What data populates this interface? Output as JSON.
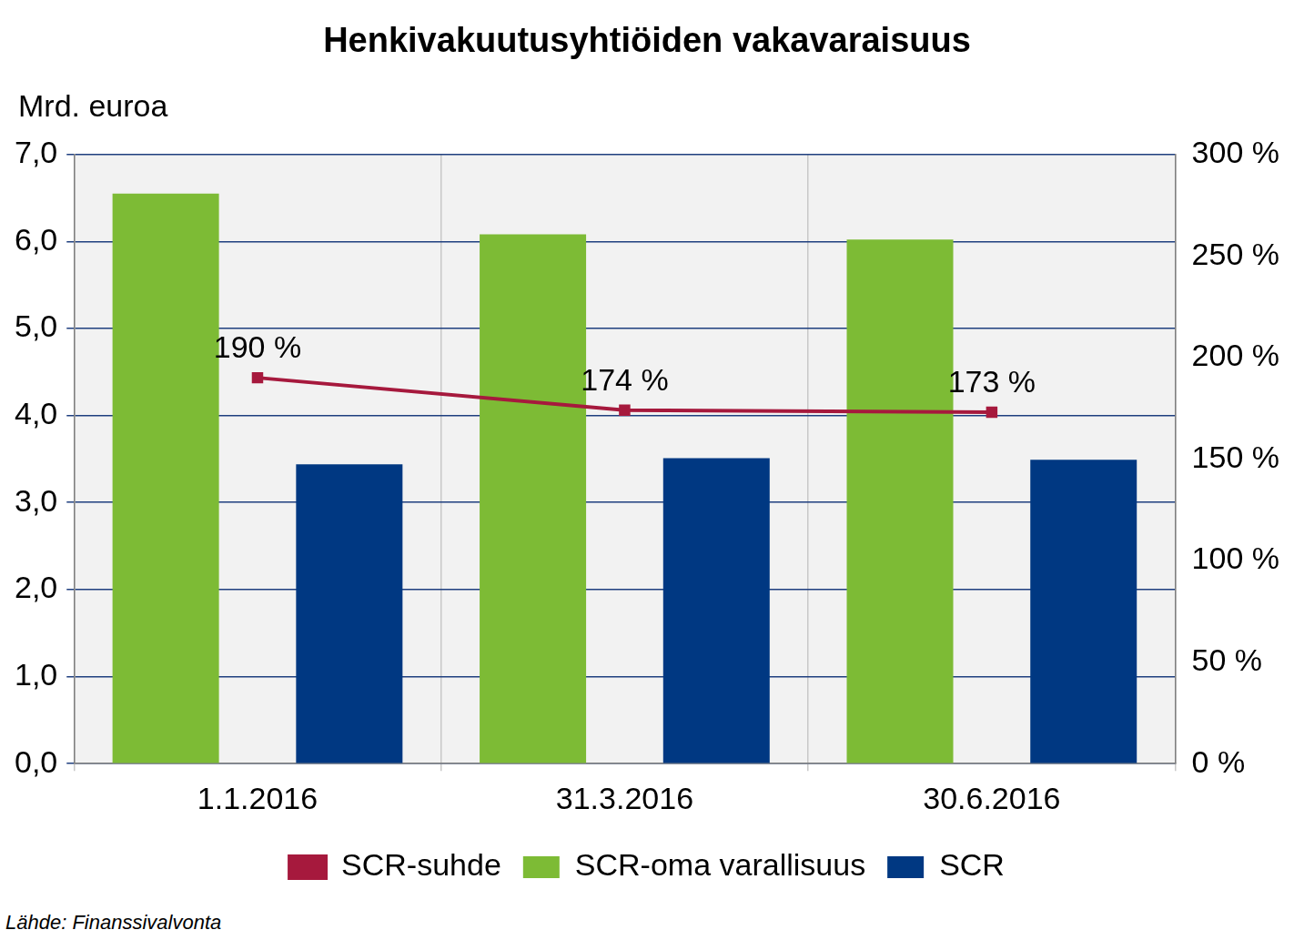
{
  "chart_data": {
    "type": "bar",
    "title": "Henkivakuutusyhtiöiden vakavaraisuus",
    "ylabel": "Mrd. euroa",
    "note": "Lähde: Finanssivalvonta",
    "categories": [
      "1.1.2016",
      "31.3.2016",
      "30.6.2016"
    ],
    "series": [
      {
        "name": "SCR-oma varallisuus",
        "type": "bar",
        "color": "#7dbb35",
        "values": [
          6.55,
          6.08,
          6.02
        ]
      },
      {
        "name": "SCR",
        "type": "bar",
        "color": "#003882",
        "values": [
          3.44,
          3.51,
          3.49
        ]
      },
      {
        "name": "SCR-suhde",
        "type": "line",
        "axis": "y2",
        "color": "#a6193d",
        "marker": "square",
        "line_style": "solid",
        "data_labels": true,
        "values": [
          190,
          174,
          173
        ],
        "value_labels": [
          "190 %",
          "174 %",
          "173 %"
        ]
      }
    ],
    "ylim": [
      0,
      7
    ],
    "yticks": [
      {
        "value": 0,
        "label": "0,0"
      },
      {
        "value": 1,
        "label": "1,0"
      },
      {
        "value": 2,
        "label": "2,0"
      },
      {
        "value": 3,
        "label": "3,0"
      },
      {
        "value": 4,
        "label": "4,0"
      },
      {
        "value": 5,
        "label": "5,0"
      },
      {
        "value": 6,
        "label": "6,0"
      },
      {
        "value": 7,
        "label": "7,0"
      }
    ],
    "y2lim": [
      0,
      300
    ],
    "y2ticks": [
      {
        "value": 0,
        "label": "0 %"
      },
      {
        "value": 50,
        "label": "50 %"
      },
      {
        "value": 100,
        "label": "100 %"
      },
      {
        "value": 150,
        "label": "150 %"
      },
      {
        "value": 200,
        "label": "200 %"
      },
      {
        "value": 250,
        "label": "250 %"
      },
      {
        "value": 300,
        "label": "300 %"
      }
    ],
    "grid": true,
    "legend": "bottom"
  }
}
